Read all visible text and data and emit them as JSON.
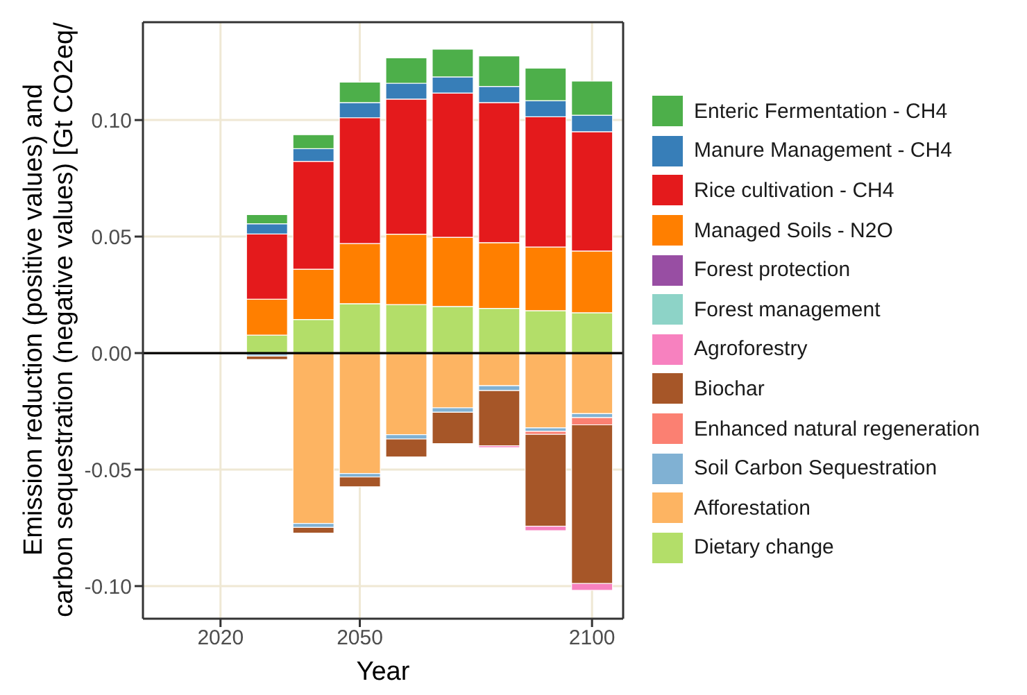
{
  "chart_data": {
    "type": "bar",
    "xlabel": "Year",
    "ylabel": "Emission reduction (positive values) and\ncarbon sequestration (negative values) [Gt CO2eq/",
    "x": [
      2030,
      2040,
      2050,
      2060,
      2070,
      2080,
      2090,
      2100
    ],
    "xlim": [
      2003.3,
      2106.7
    ],
    "xticks": [
      2020,
      2050,
      2100
    ],
    "ylim": [
      -0.114,
      0.142
    ],
    "yticks": [
      {
        "value": -0.1,
        "label": "-0.10"
      },
      {
        "value": -0.05,
        "label": "-0.05"
      },
      {
        "value": 0,
        "label": "0.00"
      },
      {
        "value": 0.05,
        "label": "0.05"
      },
      {
        "value": 0.1,
        "label": "0.10"
      }
    ],
    "stacked": true,
    "grid": true,
    "legend": "right",
    "ref_lines": [
      {
        "axis": "y",
        "value": 0,
        "color": "#000000"
      }
    ],
    "series": [
      {
        "name": "Dietary change",
        "color": "#b3de69",
        "values": [
          0.0077,
          0.0144,
          0.0212,
          0.0208,
          0.02,
          0.0192,
          0.0182,
          0.0173
        ]
      },
      {
        "name": "Afforestation",
        "color": "#fdb462",
        "values": [
          -0.0005,
          -0.0731,
          -0.0517,
          -0.035,
          -0.0235,
          -0.014,
          -0.0321,
          -0.026
        ]
      },
      {
        "name": "Soil Carbon Sequestration",
        "color": "#80b1d3",
        "values": [
          -0.0008,
          -0.0017,
          -0.0015,
          -0.0019,
          -0.0019,
          -0.0021,
          -0.0015,
          -0.0017
        ]
      },
      {
        "name": "Enhanced natural regeneration",
        "color": "#fb8072",
        "values": [
          0,
          0,
          0,
          0,
          0,
          0,
          -0.0013,
          -0.0031
        ]
      },
      {
        "name": "Biochar",
        "color": "#a65628",
        "values": [
          -0.0015,
          -0.0025,
          -0.0042,
          -0.0077,
          -0.0135,
          -0.0237,
          -0.0394,
          -0.0681
        ]
      },
      {
        "name": "Agroforestry",
        "color": "#f781bf",
        "values": [
          0,
          null,
          null,
          null,
          null,
          -0.0008,
          -0.0019,
          -0.0029
        ]
      },
      {
        "name": "Forest management",
        "color": "#8dd3c7",
        "values": [
          0,
          0,
          0,
          0,
          0,
          0,
          0,
          0
        ]
      },
      {
        "name": "Forest protection",
        "color": "#984ea3",
        "values": [
          0,
          0,
          0,
          0,
          0,
          0,
          0,
          0
        ]
      },
      {
        "name": "Managed Soils - N2O",
        "color": "#ff7f00",
        "values": [
          0.0154,
          0.0216,
          0.0258,
          0.0302,
          0.0297,
          0.0282,
          0.0273,
          0.0265
        ]
      },
      {
        "name": "Rice cultivation - CH4",
        "color": "#e41a1c",
        "values": [
          0.028,
          0.0463,
          0.054,
          0.058,
          0.0619,
          0.0601,
          0.0559,
          0.0512
        ]
      },
      {
        "name": "Manure Management - CH4",
        "color": "#377eb8",
        "values": [
          0.0044,
          0.0054,
          0.0065,
          0.0068,
          0.0069,
          0.0069,
          0.0069,
          0.0071
        ]
      },
      {
        "name": "Enteric Fermentation - CH4",
        "color": "#4daf4a",
        "values": [
          0.0039,
          0.006,
          0.0088,
          0.0109,
          0.0119,
          0.0131,
          0.014,
          0.0146
        ]
      }
    ]
  }
}
